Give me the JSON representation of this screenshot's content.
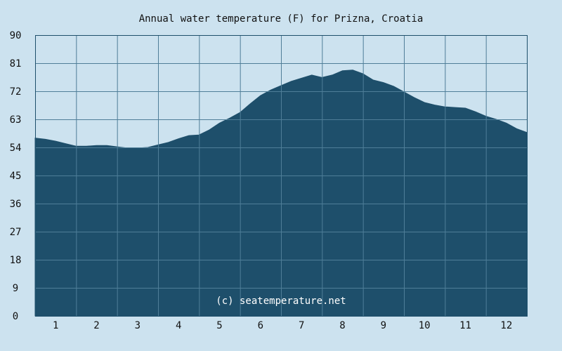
{
  "chart_data": {
    "type": "area",
    "title": "Annual water temperature (F) for Prizna, Croatia",
    "xlabel": "",
    "ylabel": "",
    "x_ticks": [
      "1",
      "2",
      "3",
      "4",
      "5",
      "6",
      "7",
      "8",
      "9",
      "10",
      "11",
      "12"
    ],
    "y_ticks": [
      "0",
      "9",
      "18",
      "27",
      "36",
      "45",
      "54",
      "63",
      "72",
      "81",
      "90"
    ],
    "ylim": [
      0,
      90
    ],
    "xlim": [
      0.5,
      12.5
    ],
    "grid": true,
    "legend": "none",
    "annotation": "(c) seatemperature.net",
    "series": [
      {
        "x": [
          0.5,
          0.75,
          1.0,
          1.25,
          1.5,
          1.75,
          2.0,
          2.25,
          2.5,
          2.75,
          3.0,
          3.25,
          3.5,
          3.75,
          4.0,
          4.25,
          4.5,
          4.75,
          5.0,
          5.25,
          5.5,
          5.75,
          6.0,
          6.25,
          6.5,
          6.75,
          7.0,
          7.25,
          7.5,
          7.75,
          8.0,
          8.25,
          8.5,
          8.75,
          9.0,
          9.25,
          9.5,
          9.75,
          10.0,
          10.25,
          10.5,
          10.75,
          11.0,
          11.25,
          11.5,
          11.75,
          12.0,
          12.25,
          12.5
        ],
        "values": [
          57.0,
          56.6,
          56.0,
          55.2,
          54.4,
          54.4,
          54.6,
          54.6,
          54.2,
          53.8,
          53.8,
          54.0,
          54.8,
          55.6,
          56.8,
          57.8,
          58.0,
          59.6,
          61.8,
          63.4,
          65.2,
          68.0,
          70.6,
          72.4,
          73.8,
          75.2,
          76.2,
          77.2,
          76.4,
          77.2,
          78.6,
          78.8,
          77.6,
          75.6,
          74.8,
          73.6,
          71.8,
          70.0,
          68.4,
          67.6,
          67.0,
          66.8,
          66.6,
          65.4,
          64.0,
          63.0,
          61.8,
          60.0,
          58.8
        ]
      }
    ],
    "colors": {
      "background": "#cce2ef",
      "area": "#1e4f6b",
      "grid": "#4f7e98",
      "plot_border": "#1e4f6b",
      "watermark": "#ffffff",
      "text": "#111111"
    }
  }
}
